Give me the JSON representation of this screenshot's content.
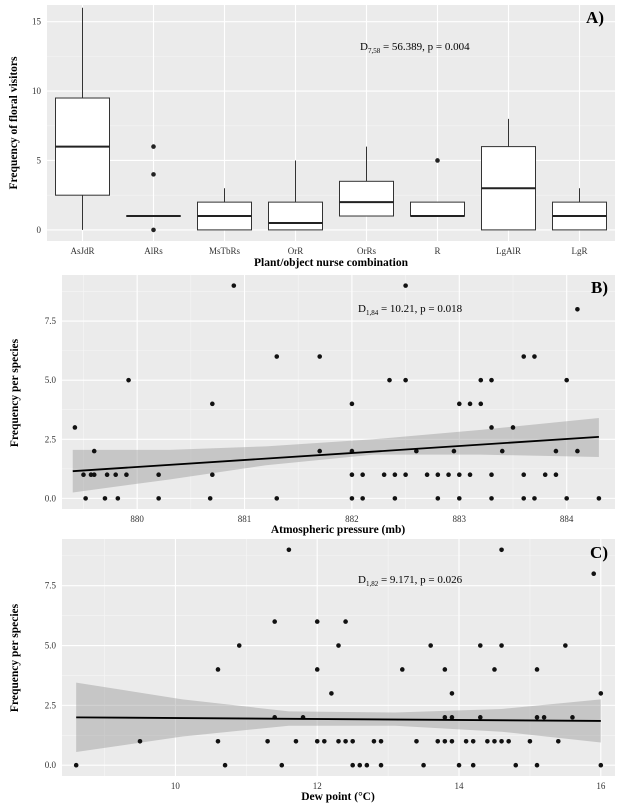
{
  "chart_data": [
    {
      "type": "box",
      "panel_label": "A)",
      "xlabel": "Plant/object nurse combination",
      "ylabel": "Frequency of floral visitors",
      "annotation": {
        "stat": "D",
        "sub": "7,58",
        "text": " = 56.389, p = 0.004"
      },
      "ylim": [
        -0.8,
        16.2
      ],
      "yticks": [
        0,
        5,
        10,
        15
      ],
      "ytick_labels": [
        "0",
        "5",
        "10",
        "15"
      ],
      "categories": [
        "AsJdR",
        "AlRs",
        "MsTbRs",
        "OrR",
        "OrRs",
        "R",
        "LgAlR",
        "LgR"
      ],
      "boxes": [
        {
          "min": 0,
          "q1": 2.5,
          "median": 6,
          "q3": 9.5,
          "max": 16,
          "outliers": []
        },
        {
          "min": 1,
          "q1": 1,
          "median": 1,
          "q3": 1,
          "max": 1,
          "outliers": [
            0,
            4,
            6
          ]
        },
        {
          "min": 0,
          "q1": 0,
          "median": 1,
          "q3": 2,
          "max": 3,
          "outliers": []
        },
        {
          "min": 0,
          "q1": 0,
          "median": 0.5,
          "q3": 2,
          "max": 5,
          "outliers": []
        },
        {
          "min": 1,
          "q1": 1,
          "median": 2,
          "q3": 3.5,
          "max": 6,
          "outliers": []
        },
        {
          "min": 1,
          "q1": 1,
          "median": 1,
          "q3": 2,
          "max": 2,
          "outliers": [
            5
          ]
        },
        {
          "min": 0,
          "q1": 0,
          "median": 3,
          "q3": 6,
          "max": 8,
          "outliers": []
        },
        {
          "min": 0,
          "q1": 0,
          "median": 1,
          "q3": 2,
          "max": 3,
          "outliers": []
        }
      ]
    },
    {
      "type": "scatter",
      "panel_label": "B)",
      "xlabel": "Atmospheric pressure (mb)",
      "ylabel": "Frequency per species",
      "annotation": {
        "stat": "D",
        "sub": "1,84",
        "text": " = 10.21, p = 0.018"
      },
      "xlim": [
        879.3,
        884.45
      ],
      "ylim": [
        -0.45,
        9.45
      ],
      "xticks": [
        880,
        881,
        882,
        883,
        884
      ],
      "xtick_labels": [
        "880",
        "881",
        "882",
        "883",
        "884"
      ],
      "yticks": [
        0,
        2.5,
        5,
        7.5
      ],
      "ytick_labels": [
        "0.0",
        "2.5",
        "5.0",
        "7.5"
      ],
      "fit": {
        "x": [
          879.4,
          884.3
        ],
        "y": [
          1.15,
          2.6
        ]
      },
      "ci_upper": [
        2.05,
        2.05,
        2.2,
        2.5,
        2.9,
        3.4
      ],
      "ci_lower": [
        0.25,
        0.8,
        1.4,
        1.85,
        1.85,
        1.75
      ],
      "ci_x": [
        879.4,
        880.3,
        881.2,
        882.2,
        883.2,
        884.3
      ],
      "points": [
        [
          879.42,
          3
        ],
        [
          879.5,
          1
        ],
        [
          879.52,
          0
        ],
        [
          879.57,
          1
        ],
        [
          879.6,
          2
        ],
        [
          879.6,
          1
        ],
        [
          879.7,
          0
        ],
        [
          879.72,
          1
        ],
        [
          879.8,
          1
        ],
        [
          879.82,
          0
        ],
        [
          879.9,
          1
        ],
        [
          879.92,
          5
        ],
        [
          880.2,
          1
        ],
        [
          880.2,
          0
        ],
        [
          880.68,
          0
        ],
        [
          880.7,
          1
        ],
        [
          880.7,
          4
        ],
        [
          880.9,
          9
        ],
        [
          881.3,
          6
        ],
        [
          881.3,
          0
        ],
        [
          881.7,
          6
        ],
        [
          881.7,
          2
        ],
        [
          882.0,
          4
        ],
        [
          882.0,
          2
        ],
        [
          882.0,
          1
        ],
        [
          882.0,
          0
        ],
        [
          882.1,
          1
        ],
        [
          882.1,
          0
        ],
        [
          882.3,
          1
        ],
        [
          882.35,
          5
        ],
        [
          882.4,
          1
        ],
        [
          882.4,
          0
        ],
        [
          882.5,
          9
        ],
        [
          882.5,
          5
        ],
        [
          882.5,
          1
        ],
        [
          882.6,
          2
        ],
        [
          882.7,
          1
        ],
        [
          882.8,
          1
        ],
        [
          882.8,
          0
        ],
        [
          882.9,
          1
        ],
        [
          882.95,
          2
        ],
        [
          883.0,
          4
        ],
        [
          883.0,
          1
        ],
        [
          883.0,
          0
        ],
        [
          883.1,
          4
        ],
        [
          883.1,
          1
        ],
        [
          883.2,
          4
        ],
        [
          883.2,
          5
        ],
        [
          883.3,
          5
        ],
        [
          883.3,
          3
        ],
        [
          883.3,
          1
        ],
        [
          883.3,
          0
        ],
        [
          883.4,
          2
        ],
        [
          883.5,
          3
        ],
        [
          883.6,
          6
        ],
        [
          883.6,
          1
        ],
        [
          883.6,
          0
        ],
        [
          883.7,
          6
        ],
        [
          883.7,
          0
        ],
        [
          883.8,
          1
        ],
        [
          883.9,
          2
        ],
        [
          883.9,
          1
        ],
        [
          884.0,
          5
        ],
        [
          884.0,
          0
        ],
        [
          884.1,
          8
        ],
        [
          884.1,
          2
        ],
        [
          884.3,
          0
        ]
      ]
    },
    {
      "type": "scatter",
      "panel_label": "C)",
      "xlabel": "Dew point (°C)",
      "ylabel": "Frequency per species",
      "annotation": {
        "stat": "D",
        "sub": "1,82",
        "text": " = 9.171, p = 0.026"
      },
      "xlim": [
        8.4,
        16.2
      ],
      "ylim": [
        -0.45,
        9.45
      ],
      "xticks": [
        10,
        12,
        14,
        16
      ],
      "xtick_labels": [
        "10",
        "12",
        "14",
        "16"
      ],
      "yticks": [
        0,
        2.5,
        5,
        7.5
      ],
      "ytick_labels": [
        "0.0",
        "2.5",
        "5.0",
        "7.5"
      ],
      "fit": {
        "x": [
          8.6,
          16.0
        ],
        "y": [
          2.0,
          1.85
        ]
      },
      "ci_upper": [
        3.45,
        2.75,
        2.25,
        2.2,
        2.35,
        2.75
      ],
      "ci_lower": [
        0.55,
        1.2,
        1.65,
        1.65,
        1.4,
        0.95
      ],
      "ci_x": [
        8.6,
        10.1,
        11.6,
        13.1,
        14.6,
        16.0
      ],
      "points": [
        [
          8.6,
          0
        ],
        [
          9.5,
          1
        ],
        [
          10.6,
          4
        ],
        [
          10.6,
          1
        ],
        [
          10.7,
          0
        ],
        [
          10.9,
          5
        ],
        [
          11.3,
          1
        ],
        [
          11.4,
          6
        ],
        [
          11.4,
          2
        ],
        [
          11.5,
          0
        ],
        [
          11.6,
          9
        ],
        [
          11.7,
          1
        ],
        [
          11.8,
          2
        ],
        [
          12.0,
          6
        ],
        [
          12.0,
          4
        ],
        [
          12.0,
          1
        ],
        [
          12.1,
          1
        ],
        [
          12.2,
          3
        ],
        [
          12.3,
          5
        ],
        [
          12.3,
          1
        ],
        [
          12.4,
          6
        ],
        [
          12.4,
          1
        ],
        [
          12.5,
          1
        ],
        [
          12.5,
          0
        ],
        [
          12.6,
          0
        ],
        [
          12.7,
          0
        ],
        [
          12.8,
          1
        ],
        [
          12.9,
          1
        ],
        [
          12.9,
          0
        ],
        [
          13.2,
          4
        ],
        [
          13.4,
          1
        ],
        [
          13.5,
          0
        ],
        [
          13.6,
          5
        ],
        [
          13.7,
          1
        ],
        [
          13.8,
          4
        ],
        [
          13.8,
          1
        ],
        [
          13.8,
          2
        ],
        [
          13.9,
          3
        ],
        [
          13.9,
          2
        ],
        [
          13.9,
          1
        ],
        [
          14.0,
          0
        ],
        [
          14.1,
          1
        ],
        [
          14.2,
          1
        ],
        [
          14.2,
          0
        ],
        [
          14.3,
          5
        ],
        [
          14.3,
          2
        ],
        [
          14.4,
          1
        ],
        [
          14.5,
          4
        ],
        [
          14.5,
          1
        ],
        [
          14.6,
          9
        ],
        [
          14.6,
          5
        ],
        [
          14.6,
          1
        ],
        [
          14.7,
          1
        ],
        [
          14.8,
          0
        ],
        [
          15.0,
          1
        ],
        [
          15.1,
          4
        ],
        [
          15.1,
          2
        ],
        [
          15.1,
          0
        ],
        [
          15.2,
          2
        ],
        [
          15.4,
          1
        ],
        [
          15.5,
          5
        ],
        [
          15.6,
          2
        ],
        [
          15.9,
          8
        ],
        [
          16.0,
          3
        ],
        [
          16.0,
          0
        ]
      ]
    }
  ]
}
